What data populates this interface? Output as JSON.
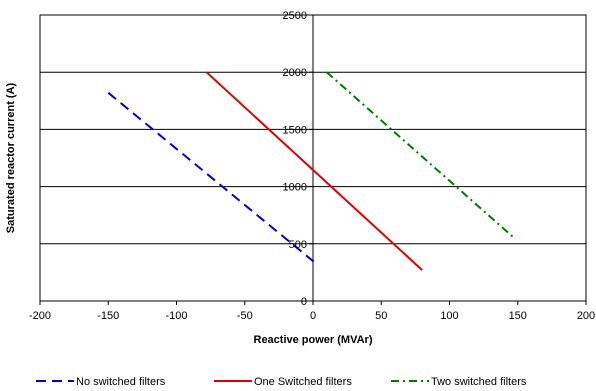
{
  "chart_data": {
    "type": "line",
    "title": "",
    "xlabel": "Reactive power (MVAr)",
    "ylabel": "Saturated reactor current (A)",
    "xlim": [
      -200,
      200
    ],
    "ylim": [
      0,
      2500
    ],
    "x_ticks": [
      -200,
      -150,
      -100,
      -50,
      0,
      50,
      100,
      150,
      200
    ],
    "y_ticks": [
      0,
      500,
      1000,
      1500,
      2000,
      2500
    ],
    "grid": "horizontal",
    "legend_position": "bottom",
    "series": [
      {
        "name": "No switched filters",
        "color": "#0000cc",
        "dash": "dashed",
        "x": [
          -150,
          3
        ],
        "y": [
          1820,
          320
        ]
      },
      {
        "name": "One Switched filters",
        "color": "#e00000",
        "dash": "solid",
        "x": [
          -78,
          80
        ],
        "y": [
          2000,
          270
        ]
      },
      {
        "name": "Two switched filters",
        "color": "#007a00",
        "dash": "dash-dot",
        "x": [
          10,
          148
        ],
        "y": [
          2000,
          545
        ]
      }
    ]
  }
}
